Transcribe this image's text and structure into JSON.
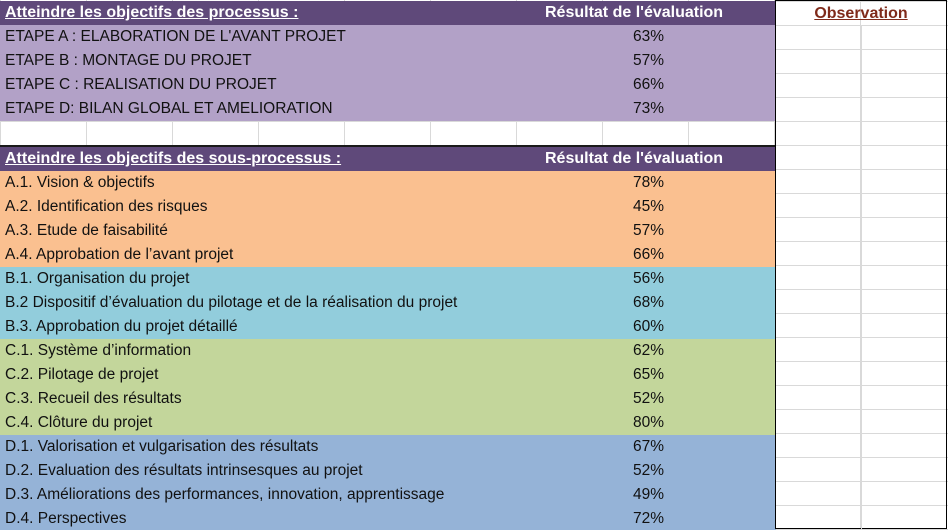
{
  "colors": {
    "header_bg": "#5f497a",
    "process_bg": "#b2a1c7",
    "group_a_bg": "#fac090",
    "group_b_bg": "#92cddc",
    "group_c_bg": "#c3d69b",
    "group_d_bg": "#95b3d7",
    "observation_text": "#7f2a1a"
  },
  "processes": {
    "header": "Atteindre les objectifs des processus :",
    "result_header": "Résultat de l'évaluation",
    "rows": [
      {
        "label": "ETAPE A :  ELABORATION DE L'AVANT PROJET",
        "value": "63%"
      },
      {
        "label": "ETAPE B :  MONTAGE DU PROJET",
        "value": "57%"
      },
      {
        "label": "ETAPE C :  REALISATION DU PROJET",
        "value": "66%"
      },
      {
        "label": "ETAPE D: BILAN GLOBAL ET AMELIORATION",
        "value": "73%"
      }
    ]
  },
  "subprocesses": {
    "header": "Atteindre les objectifs des sous-processus :",
    "result_header": "Résultat de l'évaluation",
    "rows": [
      {
        "label": "A.1. Vision & objectifs",
        "value": "78%",
        "group": "a"
      },
      {
        "label": "A.2. Identification des risques",
        "value": "45%",
        "group": "a"
      },
      {
        "label": "A.3. Etude de faisabilité",
        "value": "57%",
        "group": "a"
      },
      {
        "label": "A.4. Approbation de l’avant projet",
        "value": "66%",
        "group": "a"
      },
      {
        "label": "B.1. Organisation du projet",
        "value": "56%",
        "group": "b"
      },
      {
        "label": "B.2 Dispositif d’évaluation du pilotage et de la réalisation du projet",
        "value": "68%",
        "group": "b"
      },
      {
        "label": "B.3. Approbation du projet détaillé",
        "value": "60%",
        "group": "b"
      },
      {
        "label": "C.1. Système d’information",
        "value": "62%",
        "group": "c"
      },
      {
        "label": "C.2. Pilotage de projet",
        "value": "65%",
        "group": "c"
      },
      {
        "label": "C.3. Recueil des résultats",
        "value": "52%",
        "group": "c"
      },
      {
        "label": "C.4. Clôture du projet",
        "value": "80%",
        "group": "c"
      },
      {
        "label": "D.1. Valorisation et vulgarisation des résultats",
        "value": "67%",
        "group": "d"
      },
      {
        "label": "D.2. Evaluation des résultats intrinsesques au projet",
        "value": "52%",
        "group": "d"
      },
      {
        "label": "D.3. Améliorations des performances, innovation, apprentissage",
        "value": "49%",
        "group": "d"
      },
      {
        "label": "D.4. Perspectives",
        "value": "72%",
        "group": "d"
      }
    ]
  },
  "observation": {
    "header": "Observation"
  }
}
